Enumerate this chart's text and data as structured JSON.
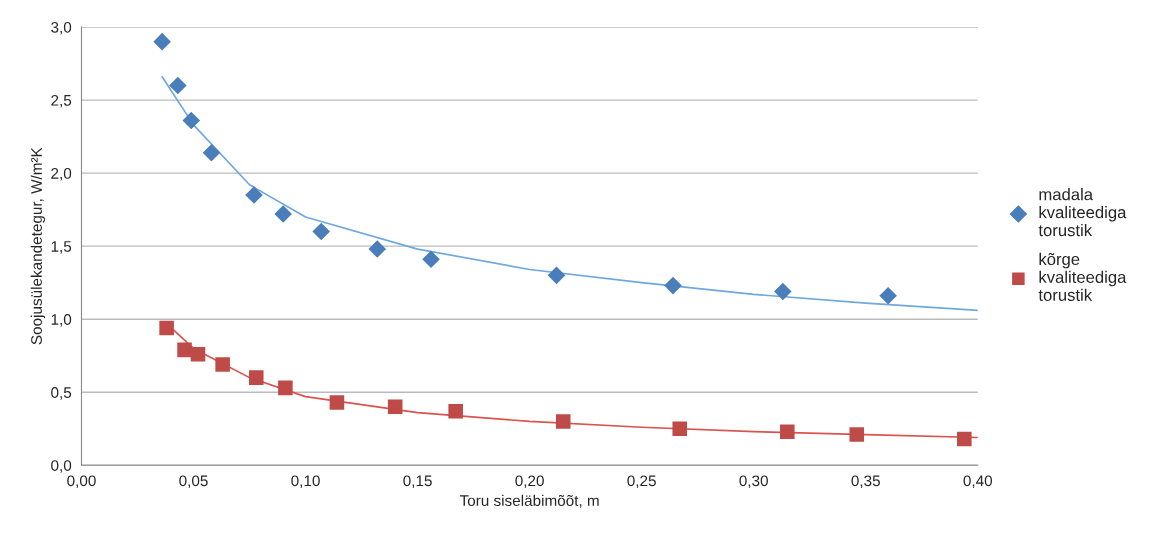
{
  "chart_data": {
    "type": "scatter",
    "xlabel": "Toru siseläbimõõt, m",
    "ylabel": "Soojusülekandetegur, W/m²K",
    "xlim": [
      0,
      0.4
    ],
    "ylim": [
      0,
      3
    ],
    "xticks": [
      {
        "value": 0,
        "label": "0,00"
      },
      {
        "value": 0.05,
        "label": "0,05"
      },
      {
        "value": 0.1,
        "label": "0,10"
      },
      {
        "value": 0.15,
        "label": "0,15"
      },
      {
        "value": 0.2,
        "label": "0,20"
      },
      {
        "value": 0.25,
        "label": "0,25"
      },
      {
        "value": 0.3,
        "label": "0,30"
      },
      {
        "value": 0.35,
        "label": "0,35"
      },
      {
        "value": 0.4,
        "label": "0,40"
      }
    ],
    "yticks": [
      {
        "value": 0,
        "label": "0,0"
      },
      {
        "value": 0.5,
        "label": "0,5"
      },
      {
        "value": 1,
        "label": "1,0"
      },
      {
        "value": 1.5,
        "label": "1,5"
      },
      {
        "value": 2,
        "label": "2,0"
      },
      {
        "value": 2.5,
        "label": "2,5"
      },
      {
        "value": 3,
        "label": "3,0"
      }
    ],
    "grid": "y",
    "legend": "right",
    "series": [
      {
        "name": "madala\nkvaliteediga\ntorustik",
        "marker": "diamond",
        "color": "#4a7ebb",
        "x": [
          0.036,
          0.043,
          0.049,
          0.058,
          0.077,
          0.09,
          0.107,
          0.132,
          0.156,
          0.212,
          0.264,
          0.313,
          0.36
        ],
        "values": [
          2.9,
          2.6,
          2.36,
          2.14,
          1.85,
          1.72,
          1.6,
          1.48,
          1.41,
          1.3,
          1.23,
          1.19,
          1.16
        ]
      },
      {
        "name": "kõrge\nkvaliteediga\ntorustik",
        "marker": "square",
        "color": "#be4b48",
        "x": [
          0.038,
          0.046,
          0.052,
          0.063,
          0.078,
          0.091,
          0.114,
          0.14,
          0.167,
          0.215,
          0.267,
          0.315,
          0.346,
          0.394
        ],
        "values": [
          0.94,
          0.79,
          0.76,
          0.69,
          0.6,
          0.53,
          0.43,
          0.4,
          0.37,
          0.3,
          0.25,
          0.23,
          0.21,
          0.18
        ]
      },
      {
        "type": "line",
        "color": "#6fa8dc",
        "x": [
          0.036,
          0.05,
          0.075,
          0.1,
          0.15,
          0.2,
          0.25,
          0.3,
          0.35,
          0.4
        ],
        "values": [
          2.66,
          2.33,
          1.92,
          1.7,
          1.48,
          1.34,
          1.25,
          1.17,
          1.11,
          1.06
        ]
      },
      {
        "type": "line",
        "color": "#d9534f",
        "x": [
          0.038,
          0.05,
          0.075,
          0.1,
          0.15,
          0.2,
          0.25,
          0.3,
          0.35,
          0.4
        ],
        "values": [
          0.97,
          0.8,
          0.6,
          0.47,
          0.36,
          0.3,
          0.26,
          0.23,
          0.21,
          0.19
        ]
      }
    ]
  }
}
